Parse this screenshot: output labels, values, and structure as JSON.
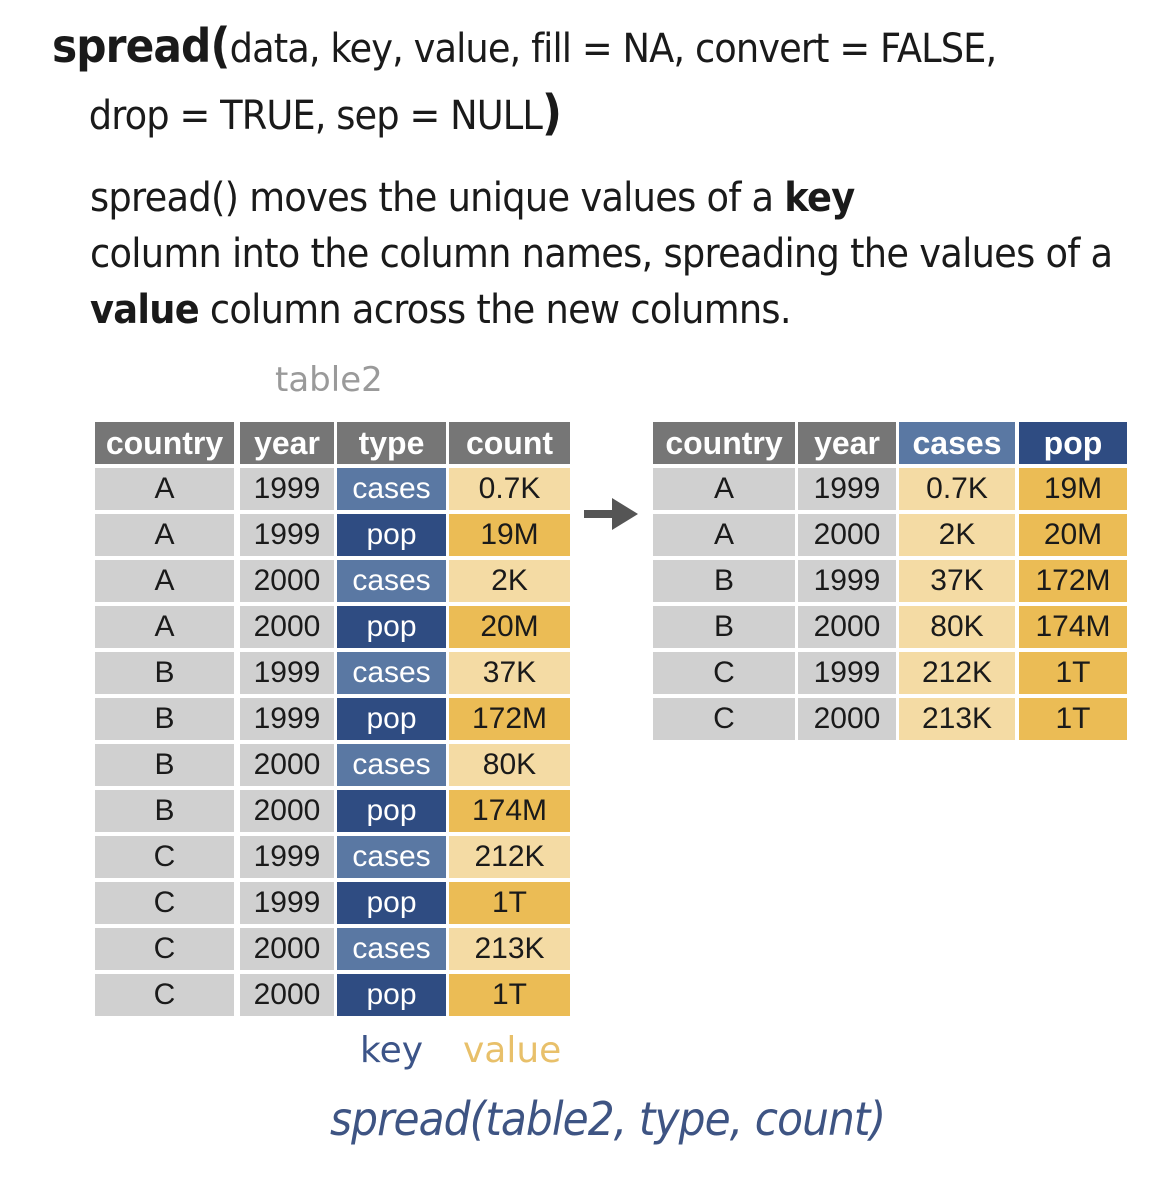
{
  "signature": {
    "fn": "spread",
    "open_paren": "(",
    "args_line1": "data, key, value, fill = NA, convert = FALSE,",
    "args_line2": "drop = TRUE, sep = NULL",
    "close_paren": ")"
  },
  "description": {
    "part1": "spread() moves the unique values of a ",
    "bold1": "key",
    "part2": " column into the column names, spreading the values of a ",
    "bold2": "value",
    "part3": " column across the new columns."
  },
  "input_table": {
    "name": "table2",
    "headers": [
      "country",
      "year",
      "type",
      "count"
    ],
    "rows": [
      [
        "A",
        "1999",
        "cases",
        "0.7K"
      ],
      [
        "A",
        "1999",
        "pop",
        "19M"
      ],
      [
        "A",
        "2000",
        "cases",
        "2K"
      ],
      [
        "A",
        "2000",
        "pop",
        "20M"
      ],
      [
        "B",
        "1999",
        "cases",
        "37K"
      ],
      [
        "B",
        "1999",
        "pop",
        "172M"
      ],
      [
        "B",
        "2000",
        "cases",
        "80K"
      ],
      [
        "B",
        "2000",
        "pop",
        "174M"
      ],
      [
        "C",
        "1999",
        "cases",
        "212K"
      ],
      [
        "C",
        "1999",
        "pop",
        "1T"
      ],
      [
        "C",
        "2000",
        "cases",
        "213K"
      ],
      [
        "C",
        "2000",
        "pop",
        "1T"
      ]
    ]
  },
  "output_table": {
    "headers": [
      "country",
      "year",
      "cases",
      "pop"
    ],
    "rows": [
      [
        "A",
        "1999",
        "0.7K",
        "19M"
      ],
      [
        "A",
        "2000",
        "2K",
        "20M"
      ],
      [
        "B",
        "1999",
        "37K",
        "172M"
      ],
      [
        "B",
        "2000",
        "80K",
        "174M"
      ],
      [
        "C",
        "1999",
        "212K",
        "1T"
      ],
      [
        "C",
        "2000",
        "213K",
        "1T"
      ]
    ]
  },
  "key_label": "key",
  "value_label": "value",
  "call": "spread(table2, type, count)",
  "colors": {
    "header_gray": "#767676",
    "cell_gray": "#d0d0d0",
    "cases_blue": "#5a78a3",
    "pop_blue": "#2f4c82",
    "light_gold": "#f4dba4",
    "gold": "#ebbc55",
    "arrow": "#555555"
  },
  "icons": {
    "arrow": "right-arrow-icon"
  }
}
